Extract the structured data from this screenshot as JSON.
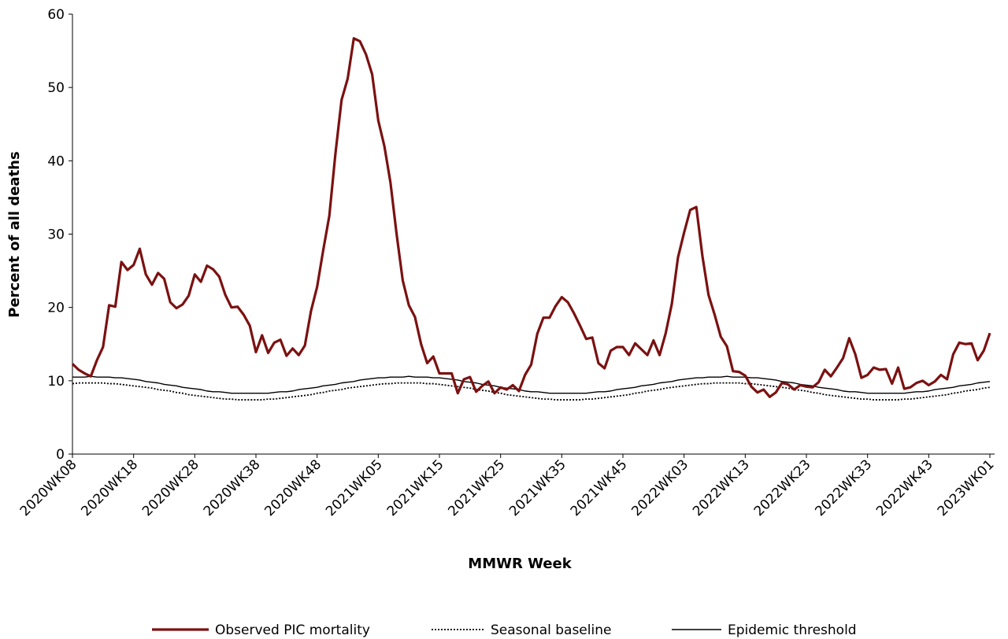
{
  "chart_data": {
    "type": "line",
    "x_label": "MMWR Week",
    "y_label": "Percent of all deaths",
    "ylim": [
      0,
      60
    ],
    "yticks": [
      0,
      10,
      20,
      30,
      40,
      50,
      60
    ],
    "grid": false,
    "legend": "bottom",
    "categories": [
      "2020WK08",
      null,
      null,
      null,
      null,
      null,
      null,
      null,
      null,
      null,
      "2020WK18",
      null,
      null,
      null,
      null,
      null,
      null,
      null,
      null,
      null,
      "2020WK28",
      null,
      null,
      null,
      null,
      null,
      null,
      null,
      null,
      null,
      "2020WK38",
      null,
      null,
      null,
      null,
      null,
      null,
      null,
      null,
      null,
      "2020WK48",
      null,
      null,
      null,
      null,
      null,
      null,
      null,
      null,
      null,
      "2021WK05",
      null,
      null,
      null,
      null,
      null,
      null,
      null,
      null,
      null,
      "2021WK15",
      null,
      null,
      null,
      null,
      null,
      null,
      null,
      null,
      null,
      "2021WK25",
      null,
      null,
      null,
      null,
      null,
      null,
      null,
      null,
      null,
      "2021WK35",
      null,
      null,
      null,
      null,
      null,
      null,
      null,
      null,
      null,
      "2021WK45",
      null,
      null,
      null,
      null,
      null,
      null,
      null,
      null,
      null,
      "2022WK03",
      null,
      null,
      null,
      null,
      null,
      null,
      null,
      null,
      null,
      "2022WK13",
      null,
      null,
      null,
      null,
      null,
      null,
      null,
      null,
      null,
      "2022WK23",
      null,
      null,
      null,
      null,
      null,
      null,
      null,
      null,
      null,
      "2022WK33",
      null,
      null,
      null,
      null,
      null,
      null,
      null,
      null,
      null,
      "2022WK43",
      null,
      null,
      null,
      null,
      null,
      null,
      null,
      null,
      null,
      "2023WK01"
    ],
    "series": [
      {
        "name": "Observed PIC mortality",
        "color": "#7b1111",
        "width": 3.2,
        "dash": "solid",
        "values": [
          12.3,
          11.5,
          11,
          10.6,
          12.8,
          14.6,
          20.3,
          20.1,
          26.2,
          25.1,
          25.8,
          28,
          24.5,
          23.1,
          24.7,
          23.9,
          20.7,
          19.9,
          20.4,
          21.6,
          24.5,
          23.5,
          25.7,
          25.2,
          24.2,
          21.7,
          20,
          20.1,
          19,
          17.5,
          13.9,
          16.2,
          13.8,
          15.2,
          15.6,
          13.4,
          14.4,
          13.5,
          14.8,
          19.5,
          22.8,
          27.8,
          32.5,
          41,
          48.3,
          51.2,
          56.7,
          56.3,
          54.5,
          51.8,
          45.5,
          42,
          37,
          30,
          23.7,
          20.3,
          18.7,
          15,
          12.4,
          13.3,
          11,
          11,
          11,
          8.3,
          10.2,
          10.5,
          8.5,
          9.3,
          9.9,
          8.3,
          9.1,
          8.8,
          9.4,
          8.6,
          10.8,
          12.2,
          16.4,
          18.6,
          18.6,
          20.2,
          21.4,
          20.7,
          19.2,
          17.5,
          15.7,
          15.9,
          12.4,
          11.7,
          14.1,
          14.6,
          14.6,
          13.5,
          15.1,
          14.3,
          13.5,
          15.5,
          13.5,
          16.5,
          20.5,
          26.8,
          30.2,
          33.3,
          33.7,
          27,
          21.7,
          19,
          16,
          14.7,
          11.3,
          11.2,
          10.7,
          9.2,
          8.4,
          8.8,
          7.8,
          8.4,
          9.7,
          9.5,
          8.8,
          9.4,
          9.2,
          9.1,
          9.8,
          11.5,
          10.6,
          11.8,
          13.1,
          15.8,
          13.6,
          10.4,
          10.8,
          11.8,
          11.5,
          11.6,
          9.6,
          11.8,
          8.9,
          9.1,
          9.7,
          10,
          9.4,
          9.9,
          10.8,
          10.2,
          13.6,
          15.2,
          15,
          15.1,
          12.8,
          14.1,
          16.5
        ]
      },
      {
        "name": "Seasonal baseline",
        "color": "#000000",
        "width": 1.8,
        "dash": "dotted",
        "values": [
          9.6,
          9.7,
          9.7,
          9.7,
          9.7,
          9.7,
          9.6,
          9.6,
          9.5,
          9.4,
          9.3,
          9.2,
          9.1,
          9.0,
          8.8,
          8.7,
          8.6,
          8.4,
          8.3,
          8.1,
          8.0,
          7.9,
          7.8,
          7.7,
          7.6,
          7.5,
          7.5,
          7.4,
          7.4,
          7.4,
          7.4,
          7.4,
          7.5,
          7.5,
          7.6,
          7.7,
          7.8,
          7.9,
          8.0,
          8.1,
          8.3,
          8.4,
          8.6,
          8.7,
          8.8,
          9.0,
          9.1,
          9.2,
          9.3,
          9.4,
          9.5,
          9.6,
          9.6,
          9.7,
          9.7,
          9.7,
          9.7,
          9.7,
          9.6,
          9.6,
          9.5,
          9.4,
          9.3,
          9.2,
          9.1,
          9.0,
          8.8,
          8.7,
          8.6,
          8.4,
          8.3,
          8.1,
          8.0,
          7.9,
          7.8,
          7.7,
          7.6,
          7.5,
          7.5,
          7.4,
          7.4,
          7.4,
          7.4,
          7.4,
          7.5,
          7.5,
          7.6,
          7.7,
          7.8,
          7.9,
          8.0,
          8.1,
          8.3,
          8.4,
          8.6,
          8.7,
          8.8,
          9.0,
          9.1,
          9.2,
          9.3,
          9.4,
          9.5,
          9.6,
          9.6,
          9.7,
          9.7,
          9.7,
          9.7,
          9.7,
          9.6,
          9.6,
          9.5,
          9.4,
          9.3,
          9.2,
          9.1,
          9.0,
          8.8,
          8.7,
          8.6,
          8.4,
          8.3,
          8.1,
          8.0,
          7.9,
          7.8,
          7.7,
          7.6,
          7.5,
          7.5,
          7.4,
          7.4,
          7.4,
          7.4,
          7.4,
          7.5,
          7.5,
          7.6,
          7.7,
          7.8,
          7.9,
          8.0,
          8.1,
          8.3,
          8.4,
          8.6,
          8.7,
          8.8,
          9.0,
          9.1
        ]
      },
      {
        "name": "Epidemic threshold",
        "color": "#000000",
        "width": 1.4,
        "dash": "solid",
        "values": [
          10.5,
          10.5,
          10.5,
          10.6,
          10.5,
          10.5,
          10.5,
          10.4,
          10.4,
          10.3,
          10.2,
          10.1,
          9.9,
          9.8,
          9.7,
          9.5,
          9.4,
          9.3,
          9.1,
          9.0,
          8.9,
          8.8,
          8.6,
          8.5,
          8.5,
          8.4,
          8.3,
          8.3,
          8.3,
          8.3,
          8.3,
          8.3,
          8.3,
          8.4,
          8.5,
          8.5,
          8.6,
          8.8,
          8.9,
          9.0,
          9.1,
          9.3,
          9.4,
          9.5,
          9.7,
          9.8,
          9.9,
          10.1,
          10.2,
          10.3,
          10.4,
          10.4,
          10.5,
          10.5,
          10.5,
          10.6,
          10.5,
          10.5,
          10.5,
          10.4,
          10.4,
          10.3,
          10.2,
          10.1,
          9.9,
          9.8,
          9.7,
          9.5,
          9.4,
          9.3,
          9.1,
          9.0,
          8.9,
          8.8,
          8.6,
          8.5,
          8.5,
          8.4,
          8.3,
          8.3,
          8.3,
          8.3,
          8.3,
          8.3,
          8.3,
          8.4,
          8.5,
          8.5,
          8.6,
          8.8,
          8.9,
          9.0,
          9.1,
          9.3,
          9.4,
          9.5,
          9.7,
          9.8,
          9.9,
          10.1,
          10.2,
          10.3,
          10.4,
          10.4,
          10.5,
          10.5,
          10.5,
          10.6,
          10.5,
          10.5,
          10.5,
          10.4,
          10.4,
          10.3,
          10.2,
          10.1,
          9.9,
          9.8,
          9.7,
          9.5,
          9.4,
          9.3,
          9.1,
          9.0,
          8.9,
          8.8,
          8.6,
          8.5,
          8.5,
          8.4,
          8.3,
          8.3,
          8.3,
          8.3,
          8.3,
          8.3,
          8.3,
          8.4,
          8.5,
          8.5,
          8.6,
          8.8,
          8.9,
          9.0,
          9.1,
          9.3,
          9.4,
          9.5,
          9.7,
          9.8,
          9.9
        ]
      }
    ]
  }
}
